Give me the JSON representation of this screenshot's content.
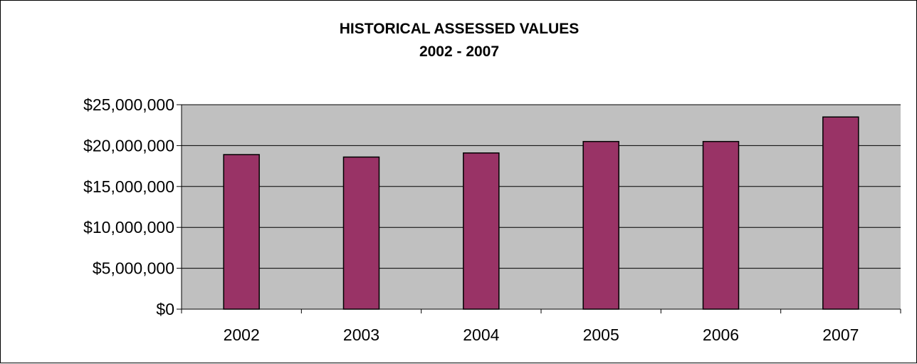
{
  "chart_data": {
    "type": "bar",
    "title": "HISTORICAL ASSESSED VALUES",
    "subtitle": "2002 - 2007",
    "categories": [
      "2002",
      "2003",
      "2004",
      "2005",
      "2006",
      "2007"
    ],
    "values": [
      18900000,
      18600000,
      19100000,
      20500000,
      20500000,
      23500000
    ],
    "ylim": [
      0,
      25000000
    ],
    "yticks": [
      0,
      5000000,
      10000000,
      15000000,
      20000000,
      25000000
    ],
    "ytick_labels": [
      "$0",
      "$5,000,000",
      "$10,000,000",
      "$15,000,000",
      "$20,000,000",
      "$25,000,000"
    ],
    "grid": true,
    "legend": "none",
    "colors": {
      "bar_fill": "#993366",
      "plot_background": "#C0C0C0",
      "gridline": "#000000"
    }
  }
}
